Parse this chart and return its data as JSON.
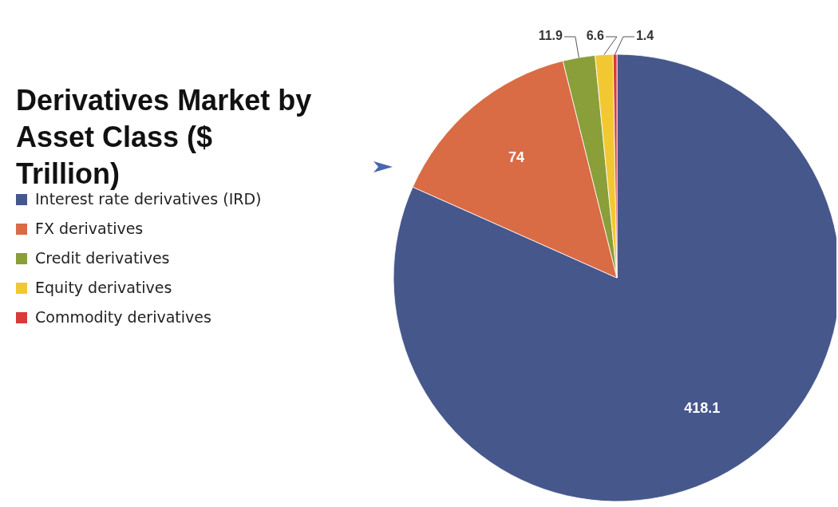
{
  "chart_data": {
    "type": "pie",
    "title": "Derivatives Market by Asset Class ($ Trillion)",
    "categories": [
      "Interest rate derivatives (IRD)",
      "FX derivatives",
      "Credit derivatives",
      "Equity derivatives",
      "Commodity derivatives"
    ],
    "values": [
      418.1,
      74,
      11.9,
      6.6,
      1.4
    ],
    "colors": [
      "#46578c",
      "#d96b45",
      "#8a9e3a",
      "#f2c832",
      "#d93a3a"
    ],
    "data_labels": true,
    "legend": "left"
  }
}
